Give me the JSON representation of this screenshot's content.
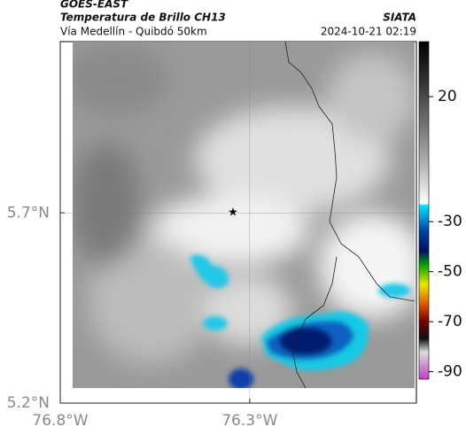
{
  "header": {
    "satellite": "GOES-EAST",
    "product": "Temperatura de Brillo CH13",
    "route": "Vía Medellín - Quibdó 50km",
    "source": "SIATA",
    "datetime": "2024-10-21 02:19"
  },
  "map": {
    "xlim": [
      -76.8,
      -75.86
    ],
    "ylim": [
      5.2,
      6.15
    ],
    "xticks": [
      {
        "value": -76.8,
        "label": "76.8°W"
      },
      {
        "value": -76.3,
        "label": "76.3°W"
      }
    ],
    "yticks": [
      {
        "value": 5.2,
        "label": "5.2°N"
      },
      {
        "value": 5.7,
        "label": "5.7°N"
      }
    ],
    "grid": true
  },
  "colorbar": {
    "clim": [
      -93,
      42
    ],
    "ticks": [
      20,
      -30,
      -50,
      -70,
      -90
    ]
  }
}
